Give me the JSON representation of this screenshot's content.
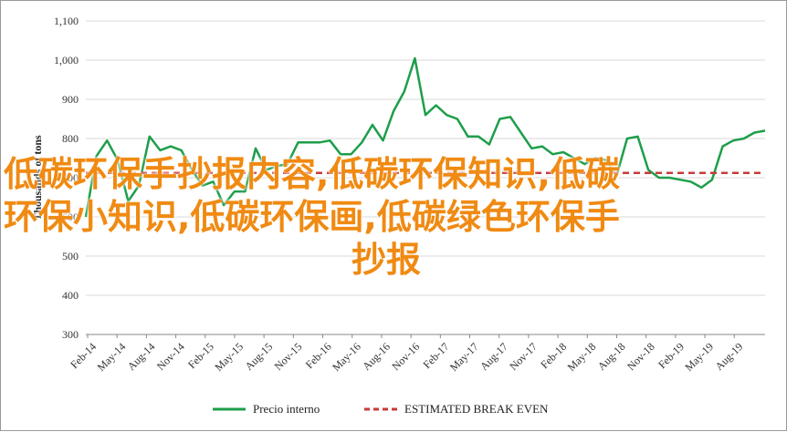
{
  "chart_data": {
    "type": "line",
    "ylabel": "Thousands of tons",
    "ylim": [
      300,
      1100
    ],
    "yticks": [
      "300",
      "400",
      "500",
      "600",
      "700",
      "800",
      "900",
      "1,000",
      "1,100"
    ],
    "x_tick_labels": [
      "Feb-14",
      "May-14",
      "Aug-14",
      "Nov-14",
      "Feb-15",
      "May-15",
      "Aug-15",
      "Nov-15",
      "Feb-16",
      "May-16",
      "Aug-16",
      "Nov-16",
      "Feb-17",
      "May-17",
      "Aug-17",
      "Nov-17",
      "Feb-18",
      "May-18",
      "Aug-18",
      "Nov-18",
      "Feb-19",
      "May-19",
      "Aug-19"
    ],
    "grid": "horizontal",
    "legend_position": "bottom",
    "series": [
      {
        "name": "Precio interno",
        "color": "#1e9e4a",
        "style": "solid",
        "values": [
          600,
          755,
          795,
          745,
          640,
          680,
          805,
          770,
          780,
          770,
          720,
          680,
          690,
          630,
          665,
          665,
          775,
          720,
          730,
          735,
          790,
          790,
          790,
          795,
          760,
          760,
          790,
          835,
          795,
          870,
          920,
          1005,
          860,
          885,
          860,
          850,
          805,
          805,
          785,
          850,
          855,
          815,
          775,
          780,
          760,
          765,
          750,
          735,
          750,
          745,
          705,
          800,
          805,
          720,
          700,
          700,
          695,
          690,
          675,
          695,
          780,
          795,
          800,
          815,
          820
        ]
      },
      {
        "name": "ESTIMATED BREAK EVEN",
        "color": "#c83a3a",
        "style": "dashed",
        "values": [
          712,
          712
        ]
      }
    ]
  },
  "overlay": {
    "line1": "低碳环保手抄报内容,低碳环保知识,低碳",
    "line2": "环保小知识,低碳环保画,低碳绿色环保手",
    "line3": "抄报"
  },
  "legend": {
    "item1": "Precio interno",
    "item2": "ESTIMATED BREAK EVEN"
  }
}
